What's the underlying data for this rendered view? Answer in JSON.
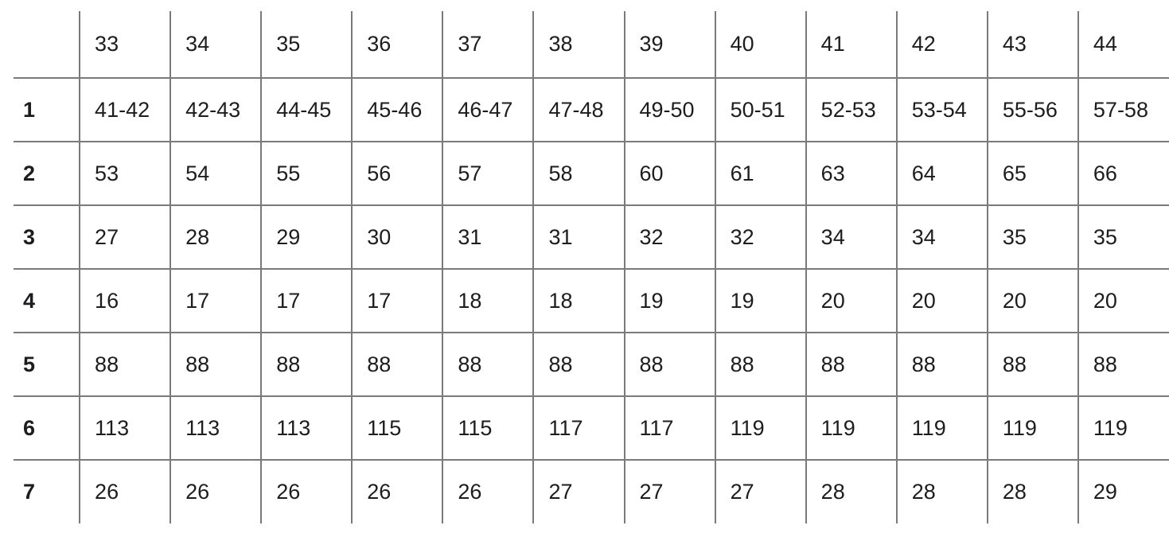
{
  "colors": {
    "border": "#7a7a7a",
    "text": "#1d1d1f",
    "background": "#ffffff"
  },
  "table": {
    "corner_label": "",
    "column_headers": [
      "33",
      "34",
      "35",
      "36",
      "37",
      "38",
      "39",
      "40",
      "41",
      "42",
      "43",
      "44"
    ],
    "rows": [
      {
        "label": "1",
        "values": [
          "41-42",
          "42-43",
          "44-45",
          "45-46",
          "46-47",
          "47-48",
          "49-50",
          "50-51",
          "52-53",
          "53-54",
          "55-56",
          "57-58"
        ]
      },
      {
        "label": "2",
        "values": [
          "53",
          "54",
          "55",
          "56",
          "57",
          "58",
          "60",
          "61",
          "63",
          "64",
          "65",
          "66"
        ]
      },
      {
        "label": "3",
        "values": [
          "27",
          "28",
          "29",
          "30",
          "31",
          "31",
          "32",
          "32",
          "34",
          "34",
          "35",
          "35"
        ]
      },
      {
        "label": "4",
        "values": [
          "16",
          "17",
          "17",
          "17",
          "18",
          "18",
          "19",
          "19",
          "20",
          "20",
          "20",
          "20"
        ]
      },
      {
        "label": "5",
        "values": [
          "88",
          "88",
          "88",
          "88",
          "88",
          "88",
          "88",
          "88",
          "88",
          "88",
          "88",
          "88"
        ]
      },
      {
        "label": "6",
        "values": [
          "113",
          "113",
          "113",
          "115",
          "115",
          "117",
          "117",
          "119",
          "119",
          "119",
          "119",
          "119"
        ]
      },
      {
        "label": "7",
        "values": [
          "26",
          "26",
          "26",
          "26",
          "26",
          "27",
          "27",
          "27",
          "28",
          "28",
          "28",
          "29"
        ]
      }
    ]
  }
}
